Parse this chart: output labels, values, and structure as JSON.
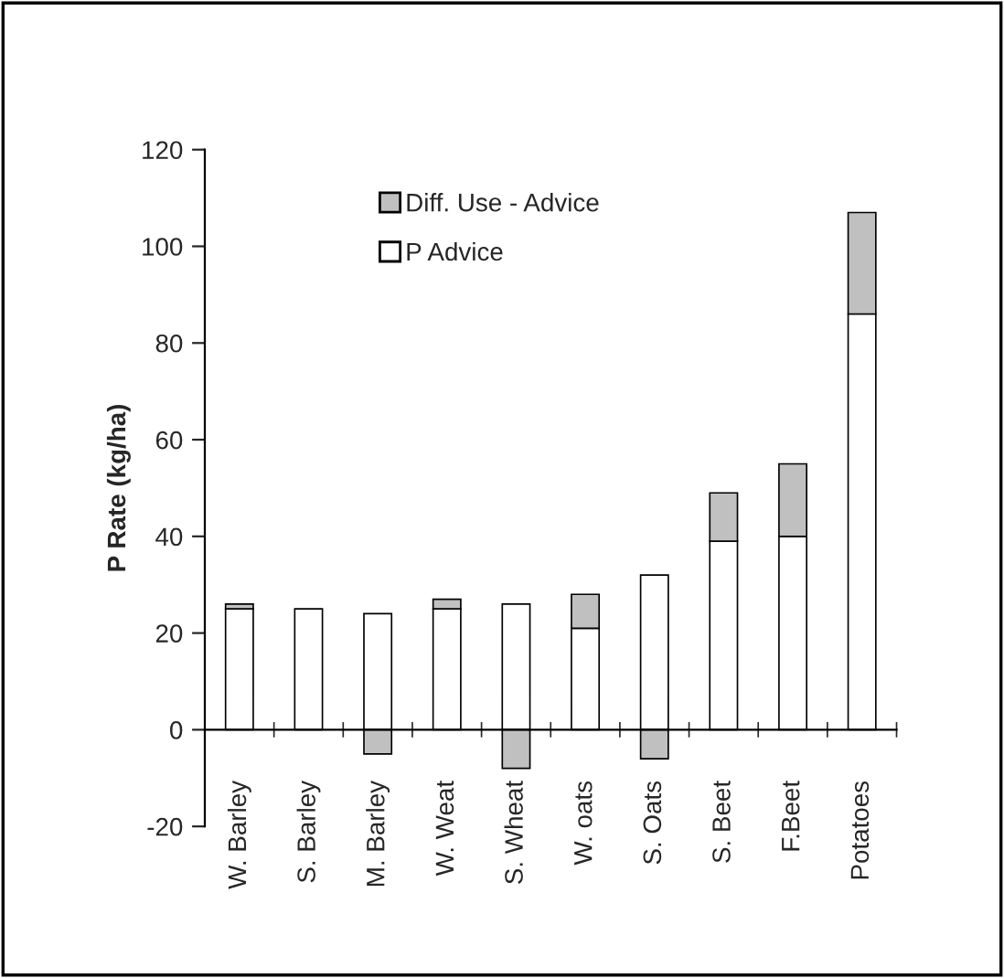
{
  "chart_data": {
    "type": "bar",
    "stacked": true,
    "ylabel": "P Rate (kg/ha)",
    "categories": [
      "W. Barley",
      "S. Barley",
      "M. Barley",
      "W. Weat",
      "S. Wheat",
      "W. oats",
      "S. Oats",
      "S. Beet",
      "F.Beet",
      "Potatoes"
    ],
    "series": [
      {
        "name": "P Advice",
        "color": "#ffffff",
        "values": [
          25,
          25,
          24,
          25,
          26,
          21,
          32,
          39,
          40,
          86
        ]
      },
      {
        "name": "Diff. Use - Advice",
        "color": "#c0c0c0",
        "values": [
          1,
          0,
          -5,
          2,
          -8,
          7,
          -6,
          10,
          15,
          21
        ]
      }
    ],
    "ylim": [
      -20,
      120
    ],
    "yticks": [
      -20,
      0,
      20,
      40,
      60,
      80,
      100,
      120
    ],
    "grid": false,
    "legend": "top left"
  }
}
